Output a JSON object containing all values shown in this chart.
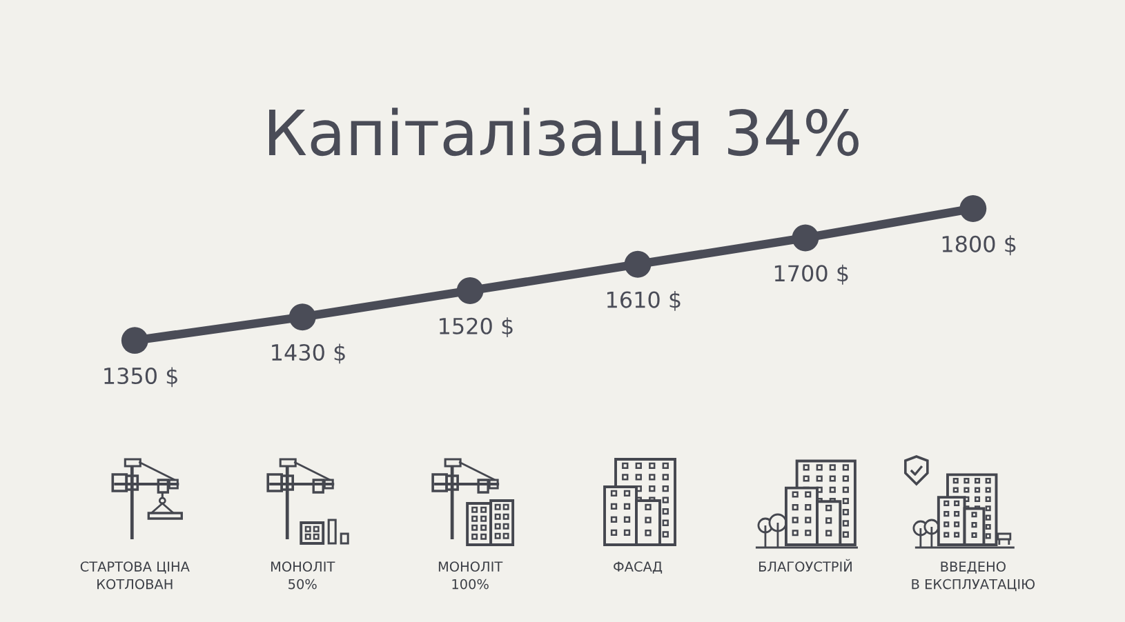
{
  "chart_data": {
    "type": "line",
    "title": "Капіталізація 34%",
    "categories": [
      "СТАРТОВА ЦІНА\nКОТЛОВАН",
      "МОНОЛІТ\n50%",
      "МОНОЛІТ\n100%",
      "ФАСАД",
      "БЛАГОУСТРІЙ",
      "ВВЕДЕНО\nВ ЕКСПЛУАТАЦІЮ"
    ],
    "values": [
      1350,
      1430,
      1520,
      1610,
      1700,
      1800
    ],
    "value_labels": [
      "1350 $",
      "1430 $",
      "1520 $",
      "1610 $",
      "1700 $",
      "1800 $"
    ],
    "color": "#4a4c57",
    "marker": "circle",
    "line_style": "solid"
  }
}
